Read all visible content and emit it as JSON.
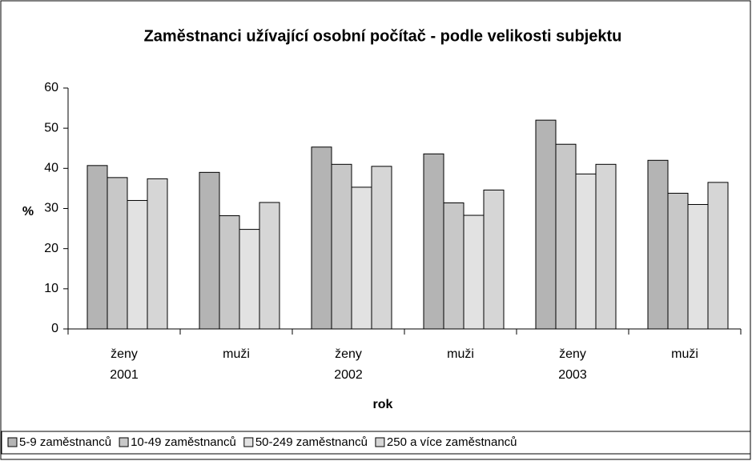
{
  "chart_data": {
    "type": "bar",
    "title": "Zaměstnanci užívající osobní počítač - podle velikosti subjektu",
    "y_label": "%",
    "x_label": "rok",
    "categories": [
      "ženy",
      "muži",
      "ženy",
      "muži",
      "ženy",
      "muži"
    ],
    "groups": [
      "2001",
      "2002",
      "2003"
    ],
    "series": [
      {
        "name": "5-9 zaměstnanců",
        "color": "#b4b4b4",
        "values": [
          40.7,
          39,
          45.3,
          43.6,
          52,
          42
        ]
      },
      {
        "name": "10-49 zaměstnanců",
        "color": "#c8c8c8",
        "values": [
          37.7,
          28.2,
          41,
          31.4,
          46,
          33.8
        ]
      },
      {
        "name": "50-249 zaměstnanců",
        "color": "#e2e2e2",
        "values": [
          32,
          24.8,
          35.3,
          28.3,
          38.6,
          31
        ]
      },
      {
        "name": "250 a více zaměstnanců",
        "color": "#d6d6d6",
        "values": [
          37.4,
          31.5,
          40.5,
          34.6,
          41,
          36.5
        ]
      }
    ],
    "ylim": [
      0,
      60
    ],
    "yticks": [
      0,
      10,
      20,
      30,
      40,
      50,
      60
    ],
    "legend": "bottom"
  }
}
